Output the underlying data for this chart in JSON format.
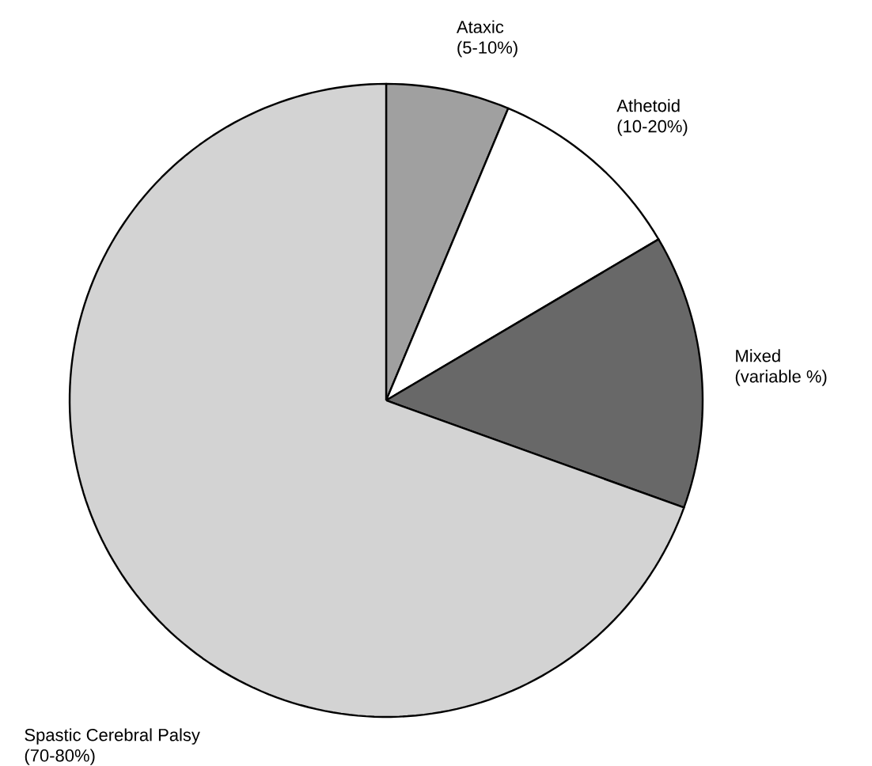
{
  "chart_data": {
    "type": "pie",
    "categories": [
      "Ataxic\n(5-10%)",
      "Athetoid\n(10-20%)",
      "Mixed\n(variable %)",
      "Spastic Cerebral Palsy\n(70-80%)"
    ],
    "values": [
      6.3,
      10.2,
      14.0,
      69.5
    ],
    "colors": [
      "#a0a0a0",
      "#ffffff",
      "#686868",
      "#d3d3d3"
    ]
  }
}
